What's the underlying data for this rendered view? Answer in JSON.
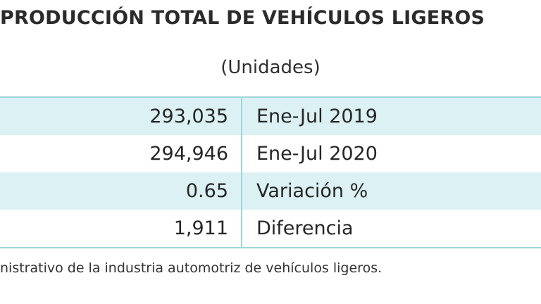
{
  "header": {
    "title": "PRODUCCIÓN TOTAL DE VEHÍCULOS LIGEROS",
    "subtitle": "(Unidades)"
  },
  "table": {
    "rows": [
      {
        "value": "293,035",
        "label": "Ene-Jul 2019"
      },
      {
        "value": "294,946",
        "label": "Ene-Jul 2020"
      },
      {
        "value": "0.65",
        "label": "Variación %"
      },
      {
        "value": "1,911",
        "label": "Diferencia"
      }
    ]
  },
  "footer": {
    "note": "nistrativo de la industria automotriz de vehículos ligeros."
  },
  "colors": {
    "row_tint": "#dcf1f3",
    "border": "#9dd6dd"
  }
}
